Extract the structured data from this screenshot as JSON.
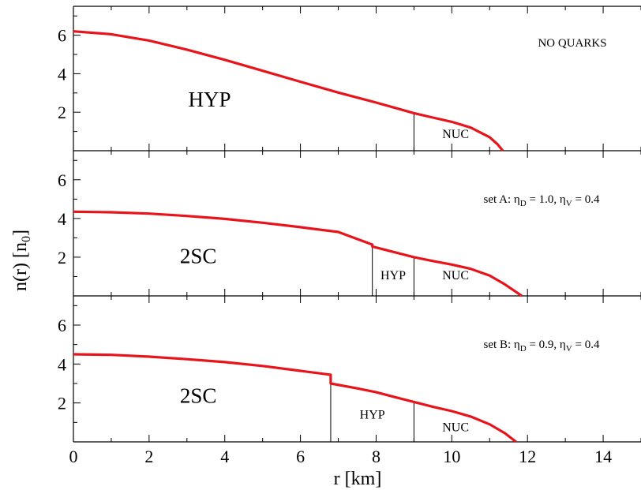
{
  "figure": {
    "xlabel": "r [km]",
    "ylabel": "n(r) [n",
    "ylabel_sub": "0",
    "ylabel_close": "]"
  },
  "chart_data": [
    {
      "type": "line",
      "annotation": {
        "text": "NO QUARKS"
      },
      "xlim": [
        0,
        15
      ],
      "ylim": [
        0,
        7.5
      ],
      "xticks": [
        0,
        2,
        4,
        6,
        8,
        10,
        12,
        14
      ],
      "yticks": [
        2,
        4,
        6
      ],
      "grid": false,
      "line_color": "#e8141b",
      "series": [
        {
          "x": [
            0,
            1,
            2,
            3,
            4,
            5,
            6,
            7,
            8,
            9,
            9.5,
            10,
            10.5,
            11,
            11.2,
            11.35
          ],
          "y": [
            6.2,
            6.05,
            5.72,
            5.25,
            4.72,
            4.15,
            3.58,
            3.02,
            2.5,
            1.95,
            1.72,
            1.5,
            1.2,
            0.7,
            0.35,
            0.0
          ]
        }
      ],
      "boundaries": [
        9.0
      ],
      "regions": [
        {
          "label": "HYP",
          "x": 3.6,
          "y": 2.3,
          "size": "big"
        },
        {
          "label": "NUC",
          "x": 10.1,
          "y": 0.65,
          "size": "small"
        }
      ]
    },
    {
      "type": "line",
      "annotation": {
        "prefix": "set A: ",
        "eta": "η",
        "sub1": "D",
        "mid": " = 1.0, ",
        "sub2": "V",
        "suffix": " = 0.4"
      },
      "xlim": [
        0,
        15
      ],
      "ylim": [
        0,
        7.5
      ],
      "xticks": [
        0,
        2,
        4,
        6,
        8,
        10,
        12,
        14
      ],
      "yticks": [
        2,
        4,
        6
      ],
      "grid": false,
      "line_color": "#e8141b",
      "series": [
        {
          "x": [
            0,
            1,
            2,
            3,
            4,
            5,
            6,
            7,
            7.9,
            7.9,
            8.5,
            9,
            9.5,
            10,
            10.5,
            11,
            11.4,
            11.7,
            11.85
          ],
          "y": [
            4.35,
            4.32,
            4.25,
            4.13,
            3.98,
            3.78,
            3.55,
            3.3,
            2.65,
            2.55,
            2.25,
            2.0,
            1.8,
            1.62,
            1.4,
            1.05,
            0.6,
            0.2,
            0.0
          ]
        }
      ],
      "boundaries": [
        7.9,
        9.0
      ],
      "regions": [
        {
          "label": "2SC",
          "x": 3.3,
          "y": 1.7,
          "size": "big"
        },
        {
          "label": "HYP",
          "x": 8.45,
          "y": 0.85,
          "size": "small"
        },
        {
          "label": "NUC",
          "x": 10.1,
          "y": 0.85,
          "size": "small"
        }
      ]
    },
    {
      "type": "line",
      "annotation": {
        "prefix": "set B: ",
        "eta": "η",
        "sub1": "D",
        "mid": " = 0.9, ",
        "sub2": "V",
        "suffix": " = 0.4"
      },
      "xlim": [
        0,
        15
      ],
      "ylim": [
        0,
        7.5
      ],
      "xticks": [
        0,
        2,
        4,
        6,
        8,
        10,
        12,
        14
      ],
      "yticks": [
        2,
        4,
        6
      ],
      "grid": false,
      "line_color": "#e8141b",
      "series": [
        {
          "x": [
            0,
            1,
            2,
            3,
            4,
            5,
            6,
            6.8,
            6.8,
            7.5,
            8,
            8.5,
            9,
            9.5,
            10,
            10.5,
            11,
            11.4,
            11.7
          ],
          "y": [
            4.5,
            4.47,
            4.38,
            4.25,
            4.1,
            3.9,
            3.65,
            3.45,
            3.0,
            2.75,
            2.55,
            2.3,
            2.05,
            1.8,
            1.58,
            1.3,
            0.9,
            0.45,
            0.0
          ]
        }
      ],
      "boundaries": [
        6.8,
        9.0
      ],
      "regions": [
        {
          "label": "2SC",
          "x": 3.3,
          "y": 2.0,
          "size": "big"
        },
        {
          "label": "HYP",
          "x": 7.9,
          "y": 1.2,
          "size": "small"
        },
        {
          "label": "NUC",
          "x": 10.1,
          "y": 0.55,
          "size": "small"
        }
      ]
    }
  ]
}
